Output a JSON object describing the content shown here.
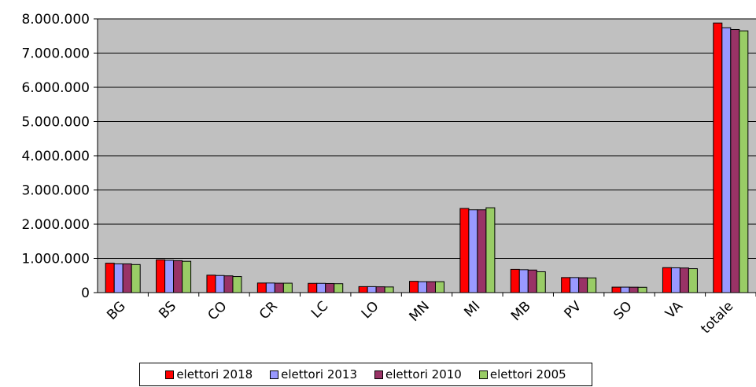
{
  "chart_data": {
    "type": "bar",
    "categories": [
      "BG",
      "BS",
      "CO",
      "CR",
      "LC",
      "LO",
      "MN",
      "MI",
      "MB",
      "PV",
      "SO",
      "VA",
      "totale"
    ],
    "ylim": [
      0,
      8000000
    ],
    "y_ticks": [
      "0",
      "1.000.000",
      "2.000.000",
      "3.000.000",
      "4.000.000",
      "5.000.000",
      "6.000.000",
      "7.000.000",
      "8.000.000"
    ],
    "y_tick_values": [
      0,
      1000000,
      2000000,
      3000000,
      4000000,
      5000000,
      6000000,
      7000000,
      8000000
    ],
    "grid": true,
    "plot_background": "#c0c0c0",
    "legend_position": "bottom",
    "series": [
      {
        "name": "elettori 2018",
        "color": "#ff0000",
        "values": [
          860000,
          960000,
          510000,
          280000,
          270000,
          175000,
          330000,
          2460000,
          680000,
          440000,
          160000,
          730000,
          7880000
        ]
      },
      {
        "name": "elettori 2013",
        "color": "#9999ff",
        "values": [
          840000,
          945000,
          500000,
          280000,
          270000,
          175000,
          320000,
          2420000,
          670000,
          440000,
          160000,
          725000,
          7740000
        ]
      },
      {
        "name": "elettori 2010",
        "color": "#993366",
        "values": [
          840000,
          935000,
          490000,
          275000,
          265000,
          170000,
          320000,
          2420000,
          660000,
          435000,
          158000,
          720000,
          7690000
        ]
      },
      {
        "name": "elettori 2005",
        "color": "#99cc66",
        "values": [
          820000,
          915000,
          470000,
          275000,
          260000,
          165000,
          320000,
          2480000,
          610000,
          430000,
          155000,
          700000,
          7650000
        ]
      }
    ]
  }
}
